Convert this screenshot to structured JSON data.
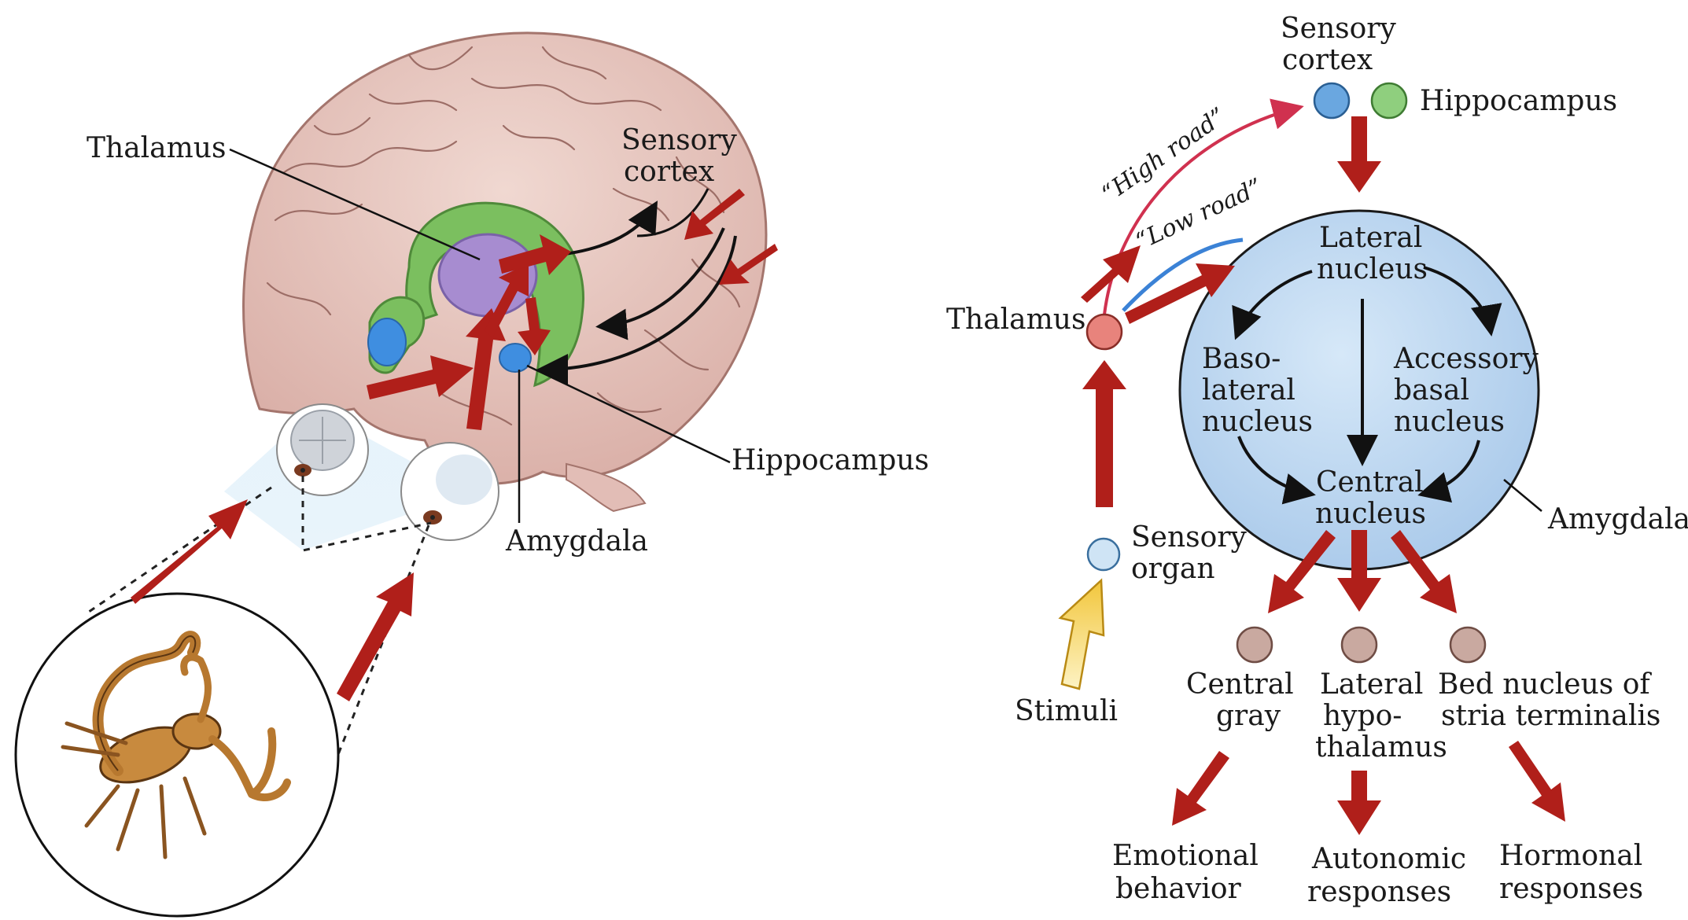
{
  "left_panel": {
    "labels": {
      "thalamus": "Thalamus",
      "sensory_cortex_1": "Sensory",
      "sensory_cortex_2": "cortex",
      "hippocampus": "Hippocampus",
      "amygdala": "Amygdala"
    }
  },
  "right_panel": {
    "top": {
      "sensory_cortex_1": "Sensory",
      "sensory_cortex_2": "cortex",
      "hippocampus": "Hippocampus"
    },
    "roads": {
      "high": "“High road”",
      "low": "“Low road”"
    },
    "thalamus": "Thalamus",
    "sensory_organ_1": "Sensory",
    "sensory_organ_2": "organ",
    "stimuli": "Stimuli",
    "amygdala": "Amygdala",
    "nuclei": {
      "lateral_1": "Lateral",
      "lateral_2": "nucleus",
      "basolateral_1": "Baso-",
      "basolateral_2": "lateral",
      "basolateral_3": "nucleus",
      "accessory_1": "Accessory",
      "accessory_2": "basal",
      "accessory_3": "nucleus",
      "central_1": "Central",
      "central_2": "nucleus"
    },
    "targets": {
      "central_gray_1": "Central",
      "central_gray_2": "gray",
      "lateral_hypo_1": "Lateral",
      "lateral_hypo_2": "hypo-",
      "lateral_hypo_3": "thalamus",
      "bed_nucleus_1": "Bed nucleus of",
      "bed_nucleus_2": "stria terminalis"
    },
    "outputs": {
      "emotional_1": "Emotional",
      "emotional_2": "behavior",
      "autonomic_1": "Autonomic",
      "autonomic_2": "responses",
      "hormonal_1": "Hormonal",
      "hormonal_2": "responses"
    }
  },
  "colors": {
    "pathway_arrow": "#b01f1a",
    "high_road": "#d0314f",
    "low_road": "#3b82d6",
    "amygdala_fill": "#c5ddf3",
    "thalamus_node": "#e8837c",
    "cortex_node": "#6aa7e0",
    "hippocampus_node": "#8fcf7e",
    "target_node": "#c9a9a0",
    "stimuli_arrow": "#f2cf4a"
  }
}
